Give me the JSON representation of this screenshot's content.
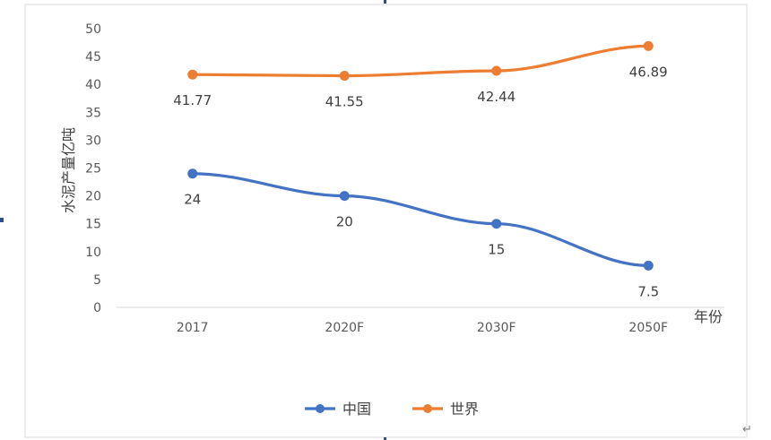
{
  "chart_data": {
    "type": "line",
    "categories": [
      "2017",
      "2020F",
      "2030F",
      "2050F"
    ],
    "series": [
      {
        "name": "中国",
        "values": [
          24,
          20,
          15,
          7.5
        ],
        "labels": [
          "24",
          "20",
          "15",
          "7.5"
        ],
        "color": "#4472C4"
      },
      {
        "name": "世界",
        "values": [
          41.77,
          41.55,
          42.44,
          46.89
        ],
        "labels": [
          "41.77",
          "41.55",
          "42.44",
          "46.89"
        ],
        "color": "#ED7D31"
      }
    ],
    "xlabel": "年份",
    "ylabel": "水泥产量亿吨",
    "ylim": [
      0,
      50
    ],
    "yticks": [
      0,
      5,
      10,
      15,
      20,
      25,
      30,
      35,
      40,
      45,
      50
    ],
    "grid": false,
    "legend_position": "bottom",
    "label_position": "below"
  },
  "page": {
    "return_glyph": "↵"
  }
}
